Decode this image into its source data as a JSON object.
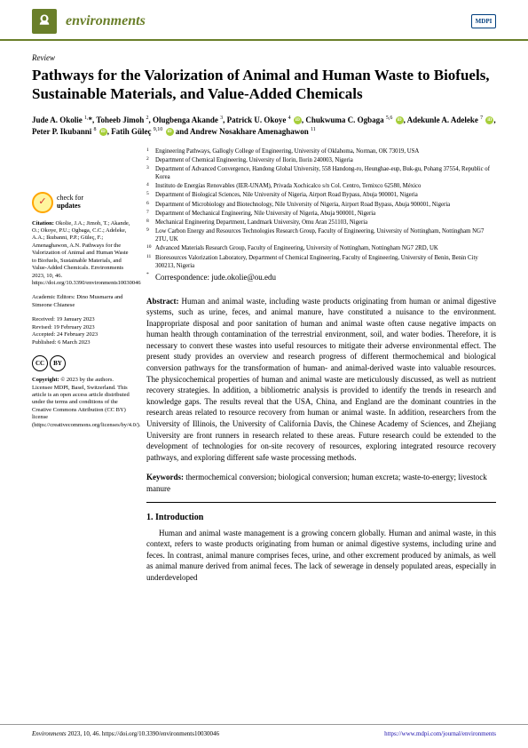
{
  "journal": "environments",
  "publisher_logo": "MDPI",
  "article_type": "Review",
  "title": "Pathways for the Valorization of Animal and Human Waste to Biofuels, Sustainable Materials, and Value-Added Chemicals",
  "authors_html": "Jude A. Okolie <sup>1,</sup>*, Toheeb Jimoh <sup>2</sup>, Olugbenga Akande <sup>3</sup>, Patrick U. Okoye <sup>4</sup> <span class='orcid'></span>, Chukwuma C. Ogbaga <sup>5,6</sup> <span class='orcid'></span>, Adekunle A. Adeleke <sup>7</sup> <span class='orcid'></span>, Peter P. Ikubanni <sup>8</sup> <span class='orcid'></span>, Fatih Güleç <sup>9,10</sup> <span class='orcid'></span> and Andrew Nosakhare Amenaghawon <sup>11</sup>",
  "affiliations": [
    "Engineering Pathways, Gallogly College of Engineering, University of Oklahoma, Norman, OK 73019, USA",
    "Department of Chemical Engineering, University of Ilorin, Ilorin 240003, Nigeria",
    "Department of Advanced Convergence, Handong Global University, 558 Handong-ro, Heunghae-eup, Buk-gu, Pohang 37554, Republic of Korea",
    "Instituto de Energías Renovables (IER-UNAM), Privada Xochicalco s/n Col. Centro, Temixco 62580, México",
    "Department of Biological Sciences, Nile University of Nigeria, Airport Road Bypass, Abuja 900001, Nigeria",
    "Department of Microbiology and Biotechnology, Nile University of Nigeria, Airport Road Bypass, Abuja 900001, Nigeria",
    "Department of Mechanical Engineering, Nile University of Nigeria, Abuja 900001, Nigeria",
    "Mechanical Engineering Department, Landmark University, Omu Aran 251103, Nigeria",
    "Low Carbon Energy and Resources Technologies Research Group, Faculty of Engineering, University of Nottingham, Nottingham NG7 2TU, UK",
    "Advanced Materials Research Group, Faculty of Engineering, University of Nottingham, Nottingham NG7 2RD, UK",
    "Bioresources Valorization Laboratory, Department of Chemical Engineering, Faculty of Engineering, University of Benin, Benin City 300213, Nigeria"
  ],
  "correspondence": "Correspondence: jude.okolie@ou.edu",
  "check_updates": {
    "line1": "check for",
    "line2": "updates"
  },
  "citation_label": "Citation:",
  "citation": "Okolie, J.A.; Jimoh, T.; Akande, O.; Okoye, P.U.; Ogbaga, C.C.; Adeleke, A.A.; Ikubanni, P.P.; Güleç, F.; Amenaghawon, A.N. Pathways for the Valorization of Animal and Human Waste to Biofuels, Sustainable Materials, and Value-Added Chemicals. Environments 2023, 10, 46. https://doi.org/10.3390/environments10030046",
  "editors_label": "Academic Editors:",
  "editors": "Dino Musmarra and Simeone Chianese",
  "dates": {
    "received": "Received: 19 January 2023",
    "revised": "Revised: 19 February 2023",
    "accepted": "Accepted: 24 February 2023",
    "published": "Published: 6 March 2023"
  },
  "copyright_label": "Copyright:",
  "copyright": "© 2023 by the authors. Licensee MDPI, Basel, Switzerland. This article is an open access article distributed under the terms and conditions of the Creative Commons Attribution (CC BY) license (https://creativecommons.org/licenses/by/4.0/).",
  "abstract_label": "Abstract:",
  "abstract": "Human and animal waste, including waste products originating from human or animal digestive systems, such as urine, feces, and animal manure, have constituted a nuisance to the environment. Inappropriate disposal and poor sanitation of human and animal waste often cause negative impacts on human health through contamination of the terrestrial environment, soil, and water bodies. Therefore, it is necessary to convert these wastes into useful resources to mitigate their adverse environmental effect. The present study provides an overview and research progress of different thermochemical and biological conversion pathways for the transformation of human- and animal-derived waste into valuable resources. The physicochemical properties of human and animal waste are meticulously discussed, as well as nutrient recovery strategies. In addition, a bibliometric analysis is provided to identify the trends in research and knowledge gaps. The results reveal that the USA, China, and England are the dominant countries in the research areas related to resource recovery from human or animal waste. In addition, researchers from the University of Illinois, the University of California Davis, the Chinese Academy of Sciences, and Zhejiang University are front runners in research related to these areas. Future research could be extended to the development of technologies for on-site recovery of resources, exploring integrated resource recovery pathways, and exploring different safe waste processing methods.",
  "keywords_label": "Keywords:",
  "keywords": "thermochemical conversion; biological conversion; human excreta; waste-to-energy; livestock manure",
  "section1_heading": "1. Introduction",
  "intro": "Human and animal waste management is a growing concern globally. Human and animal waste, in this context, refers to waste products originating from human or animal digestive systems, including urine and feces. In contrast, animal manure comprises feces, urine, and other excrement produced by animals, as well as animal manure derived from animal feces. The lack of sewerage in densely populated areas, especially in underdeveloped",
  "footer": {
    "left_italic": "Environments",
    "left_rest": " 2023, 10, 46. https://doi.org/10.3390/environments10030046",
    "right": "https://www.mdpi.com/journal/environments"
  },
  "colors": {
    "accent": "#6a7f2a",
    "mdpi_blue": "#003e7e",
    "orcid_green": "#a6ce39"
  }
}
